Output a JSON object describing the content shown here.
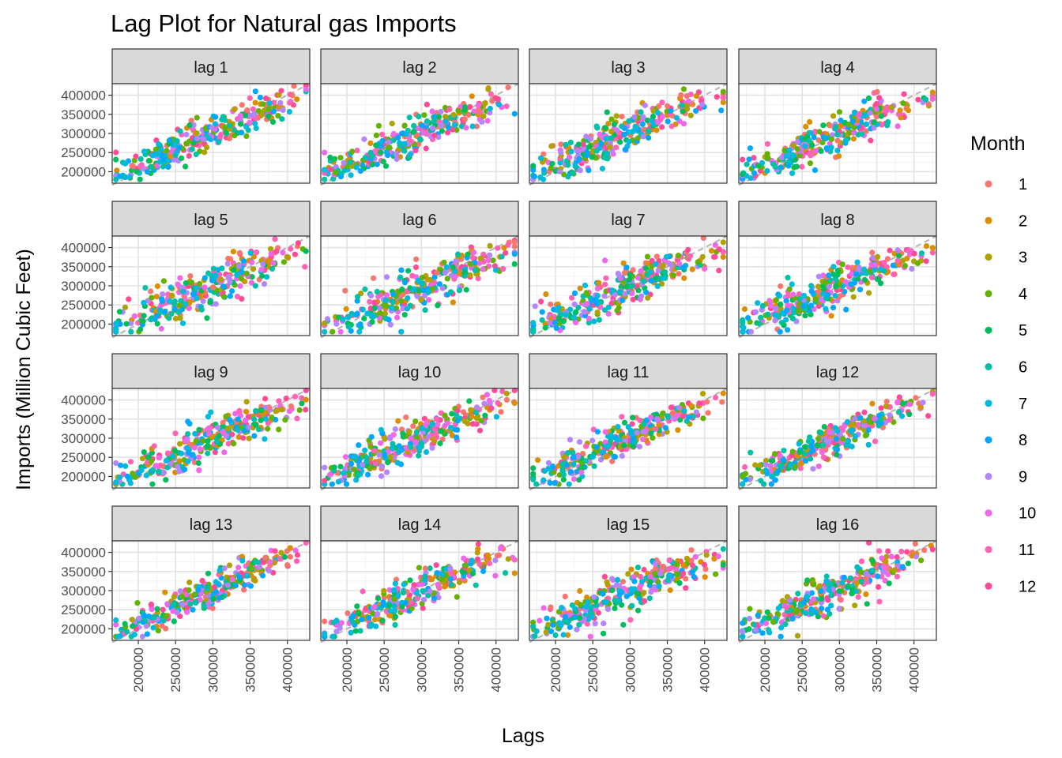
{
  "chart_data": {
    "type": "scatter",
    "title": "Lag Plot for Natural gas Imports",
    "xlabel": "Lags",
    "ylabel": "Imports (Million Cubic Feet)",
    "legend": {
      "title": "Month",
      "position": "right",
      "entries": [
        {
          "label": "1",
          "color": "#F8766D"
        },
        {
          "label": "2",
          "color": "#DB8E00"
        },
        {
          "label": "3",
          "color": "#AEA200"
        },
        {
          "label": "4",
          "color": "#64B200"
        },
        {
          "label": "5",
          "color": "#00BD5C"
        },
        {
          "label": "6",
          "color": "#00C1A7"
        },
        {
          "label": "7",
          "color": "#00BADE"
        },
        {
          "label": "8",
          "color": "#00A6FF"
        },
        {
          "label": "9",
          "color": "#B385FF"
        },
        {
          "label": "10",
          "color": "#EF67EB"
        },
        {
          "label": "11",
          "color": "#FF63B6"
        },
        {
          "label": "12",
          "color": "#FF4A98"
        }
      ]
    },
    "panels": [
      "lag 1",
      "lag 2",
      "lag 3",
      "lag 4",
      "lag 5",
      "lag 6",
      "lag 7",
      "lag 8",
      "lag 9",
      "lag 10",
      "lag 11",
      "lag 12",
      "lag 13",
      "lag 14",
      "lag 15",
      "lag 16"
    ],
    "x_ticks": [
      "200000",
      "250000",
      "300000",
      "350000",
      "400000"
    ],
    "y_ticks": [
      "200000",
      "250000",
      "300000",
      "350000",
      "400000"
    ],
    "xlim": [
      165000,
      430000
    ],
    "ylim": [
      170000,
      430000
    ],
    "reference_line": "y = x (dashed grey)",
    "grid": true,
    "points_per_panel": 300
  }
}
